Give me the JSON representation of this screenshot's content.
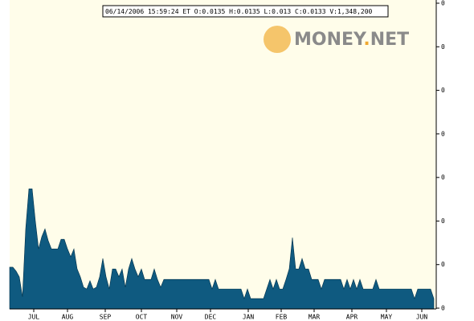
{
  "chart_data": {
    "type": "area",
    "info": "06/14/2006 15:59:24 ET  O:0.0135 H:0.0135 L:0.013 C:0.0133 V:1,348,200",
    "logo": [
      "MONEY",
      ".",
      "NET"
    ],
    "color": "#0f5a80",
    "values": [
      0.0194,
      0.0194,
      0.0185,
      0.0172,
      0.0126,
      0.0282,
      0.0374,
      0.0374,
      0.03,
      0.0236,
      0.0264,
      0.0282,
      0.0255,
      0.0236,
      0.0236,
      0.0236,
      0.0258,
      0.0258,
      0.0236,
      0.0218,
      0.0236,
      0.019,
      0.0172,
      0.0148,
      0.0144,
      0.0163,
      0.0144,
      0.0148,
      0.0172,
      0.0214,
      0.0172,
      0.0144,
      0.019,
      0.019,
      0.0172,
      0.019,
      0.0148,
      0.019,
      0.0214,
      0.019,
      0.0172,
      0.019,
      0.0166,
      0.0166,
      0.0166,
      0.019,
      0.0166,
      0.0148,
      0.0166,
      0.0166,
      0.0166,
      0.0166,
      0.0166,
      0.0166,
      0.0166,
      0.0166,
      0.0166,
      0.0166,
      0.0166,
      0.0166,
      0.0166,
      0.0166,
      0.0166,
      0.0144,
      0.0166,
      0.0144,
      0.0144,
      0.0144,
      0.0144,
      0.0144,
      0.0144,
      0.0144,
      0.0144,
      0.0122,
      0.0144,
      0.0122,
      0.0122,
      0.0122,
      0.0122,
      0.0122,
      0.0144,
      0.0166,
      0.0144,
      0.0166,
      0.0144,
      0.0144,
      0.0166,
      0.019,
      0.0262,
      0.019,
      0.019,
      0.0214,
      0.019,
      0.019,
      0.0166,
      0.0166,
      0.0166,
      0.0144,
      0.0166,
      0.0166,
      0.0166,
      0.0166,
      0.0166,
      0.0166,
      0.0144,
      0.0166,
      0.0144,
      0.0166,
      0.0144,
      0.0166,
      0.0144,
      0.0144,
      0.0144,
      0.0144,
      0.0166,
      0.0144,
      0.0144,
      0.0144,
      0.0144,
      0.0144,
      0.0144,
      0.0144,
      0.0144,
      0.0144,
      0.0144,
      0.0144,
      0.0122,
      0.0144,
      0.0144,
      0.0144,
      0.0144,
      0.0144,
      0.0122
    ],
    "xlim": [
      0,
      132
    ],
    "xticks": [
      {
        "value": 7.5,
        "label": "JUL"
      },
      {
        "value": 18,
        "label": "AUG"
      },
      {
        "value": 29.75,
        "label": "SEP"
      },
      {
        "value": 41,
        "label": "OCT"
      },
      {
        "value": 52,
        "label": "NOV"
      },
      {
        "value": 62.5,
        "label": "DEC"
      },
      {
        "value": 74.25,
        "label": "JAN"
      },
      {
        "value": 84.5,
        "label": "FEB"
      },
      {
        "value": 94.75,
        "label": "MAR"
      },
      {
        "value": 106.5,
        "label": "APR"
      },
      {
        "value": 117.25,
        "label": "MAY"
      },
      {
        "value": 128.25,
        "label": "JUN"
      }
    ],
    "ylim": [
      0.01,
      0.08
    ],
    "yticks": [
      {
        "value": 0.01,
        "label": "0"
      },
      {
        "value": 0.02,
        "label": "0"
      },
      {
        "value": 0.03,
        "label": "0"
      },
      {
        "value": 0.04,
        "label": "0"
      },
      {
        "value": 0.05,
        "label": "0"
      },
      {
        "value": 0.06,
        "label": "0"
      },
      {
        "value": 0.07,
        "label": "0"
      },
      {
        "value": 0.08,
        "label": "0"
      }
    ]
  }
}
